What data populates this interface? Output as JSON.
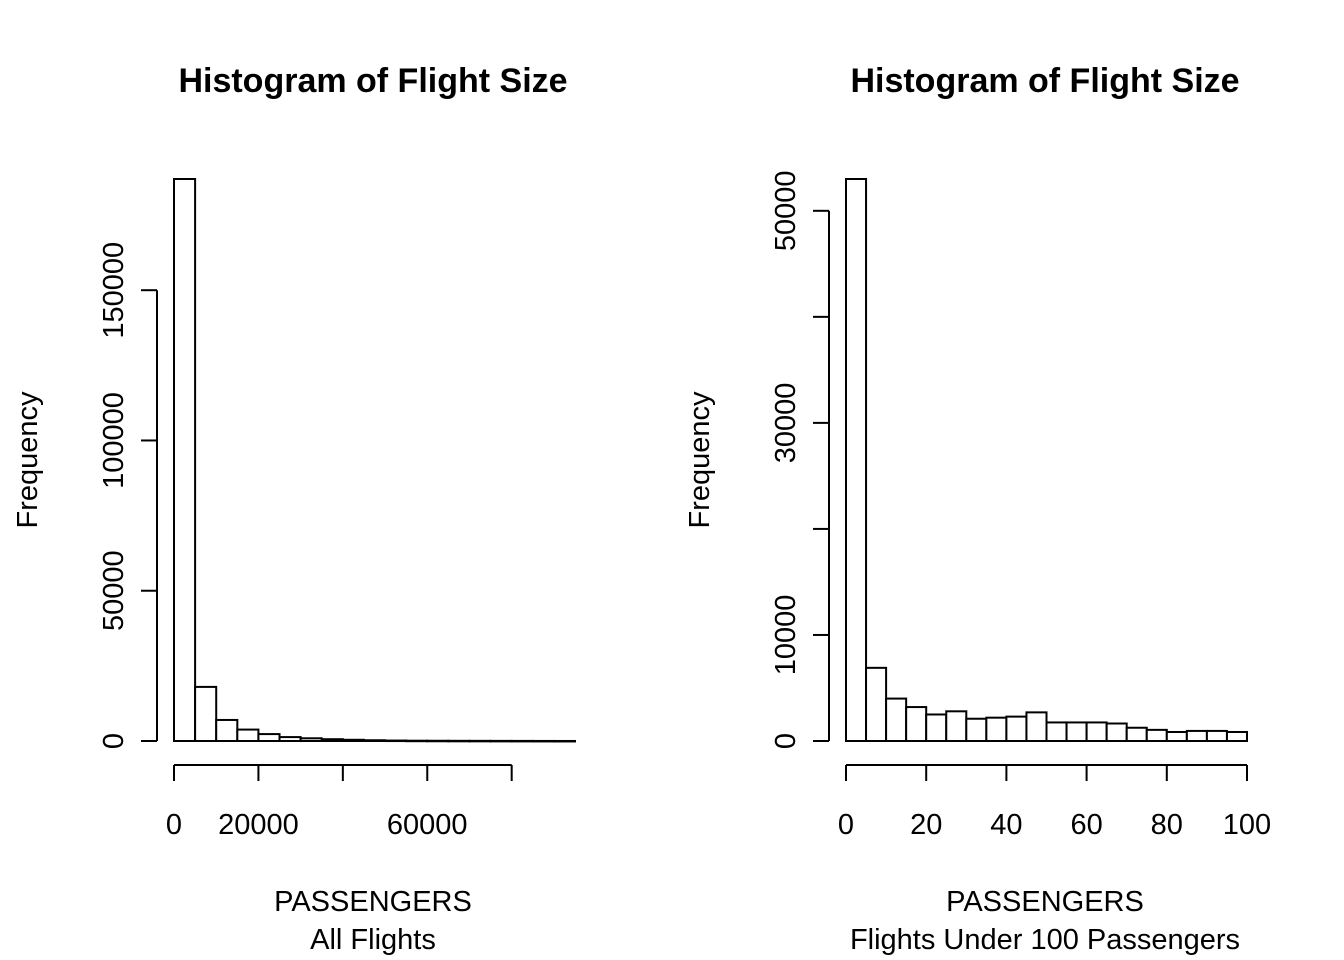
{
  "chart_data": [
    {
      "type": "bar",
      "title": "Histogram of Flight Size",
      "xlabel": "PASSENGERS",
      "subtitle": "All Flights",
      "ylabel": "Frequency",
      "bin_edges": [
        0,
        5000,
        10000,
        15000,
        20000,
        25000,
        30000,
        35000,
        40000,
        45000,
        50000,
        55000,
        60000,
        65000,
        70000,
        75000,
        80000,
        85000,
        90000,
        95000
      ],
      "values": [
        187000,
        18000,
        7000,
        3800,
        2300,
        1300,
        900,
        600,
        400,
        250,
        150,
        100,
        80,
        60,
        50,
        40,
        30,
        20,
        10
      ],
      "xlim": [
        0,
        95000
      ],
      "ylim": [
        0,
        187000
      ],
      "xticks": [
        0,
        20000,
        40000,
        60000,
        80000
      ],
      "xtick_labels": [
        "0",
        "20000",
        "",
        "60000",
        ""
      ],
      "yticks": [
        0,
        50000,
        100000,
        150000
      ],
      "ytick_labels": [
        "0",
        "50000",
        "100000",
        "150000"
      ],
      "grid": false
    },
    {
      "type": "bar",
      "title": "Histogram of Flight Size",
      "xlabel": "PASSENGERS",
      "subtitle": "Flights Under 100 Passengers",
      "ylabel": "Frequency",
      "bin_edges": [
        0,
        5,
        10,
        15,
        20,
        25,
        30,
        35,
        40,
        45,
        50,
        55,
        60,
        65,
        70,
        75,
        80,
        85,
        90,
        95,
        100
      ],
      "values": [
        53000,
        6900,
        4000,
        3200,
        2500,
        2800,
        2100,
        2200,
        2300,
        2700,
        1750,
        1750,
        1750,
        1650,
        1250,
        1050,
        850,
        950,
        950,
        850
      ],
      "xlim": [
        0,
        100
      ],
      "ylim": [
        0,
        53000
      ],
      "xticks": [
        0,
        20,
        40,
        60,
        80,
        100
      ],
      "xtick_labels": [
        "0",
        "20",
        "40",
        "60",
        "80",
        "100"
      ],
      "yticks": [
        0,
        10000,
        20000,
        30000,
        40000,
        50000
      ],
      "ytick_labels": [
        "0",
        "10000",
        "",
        "30000",
        "",
        "50000"
      ],
      "grid": false
    }
  ]
}
